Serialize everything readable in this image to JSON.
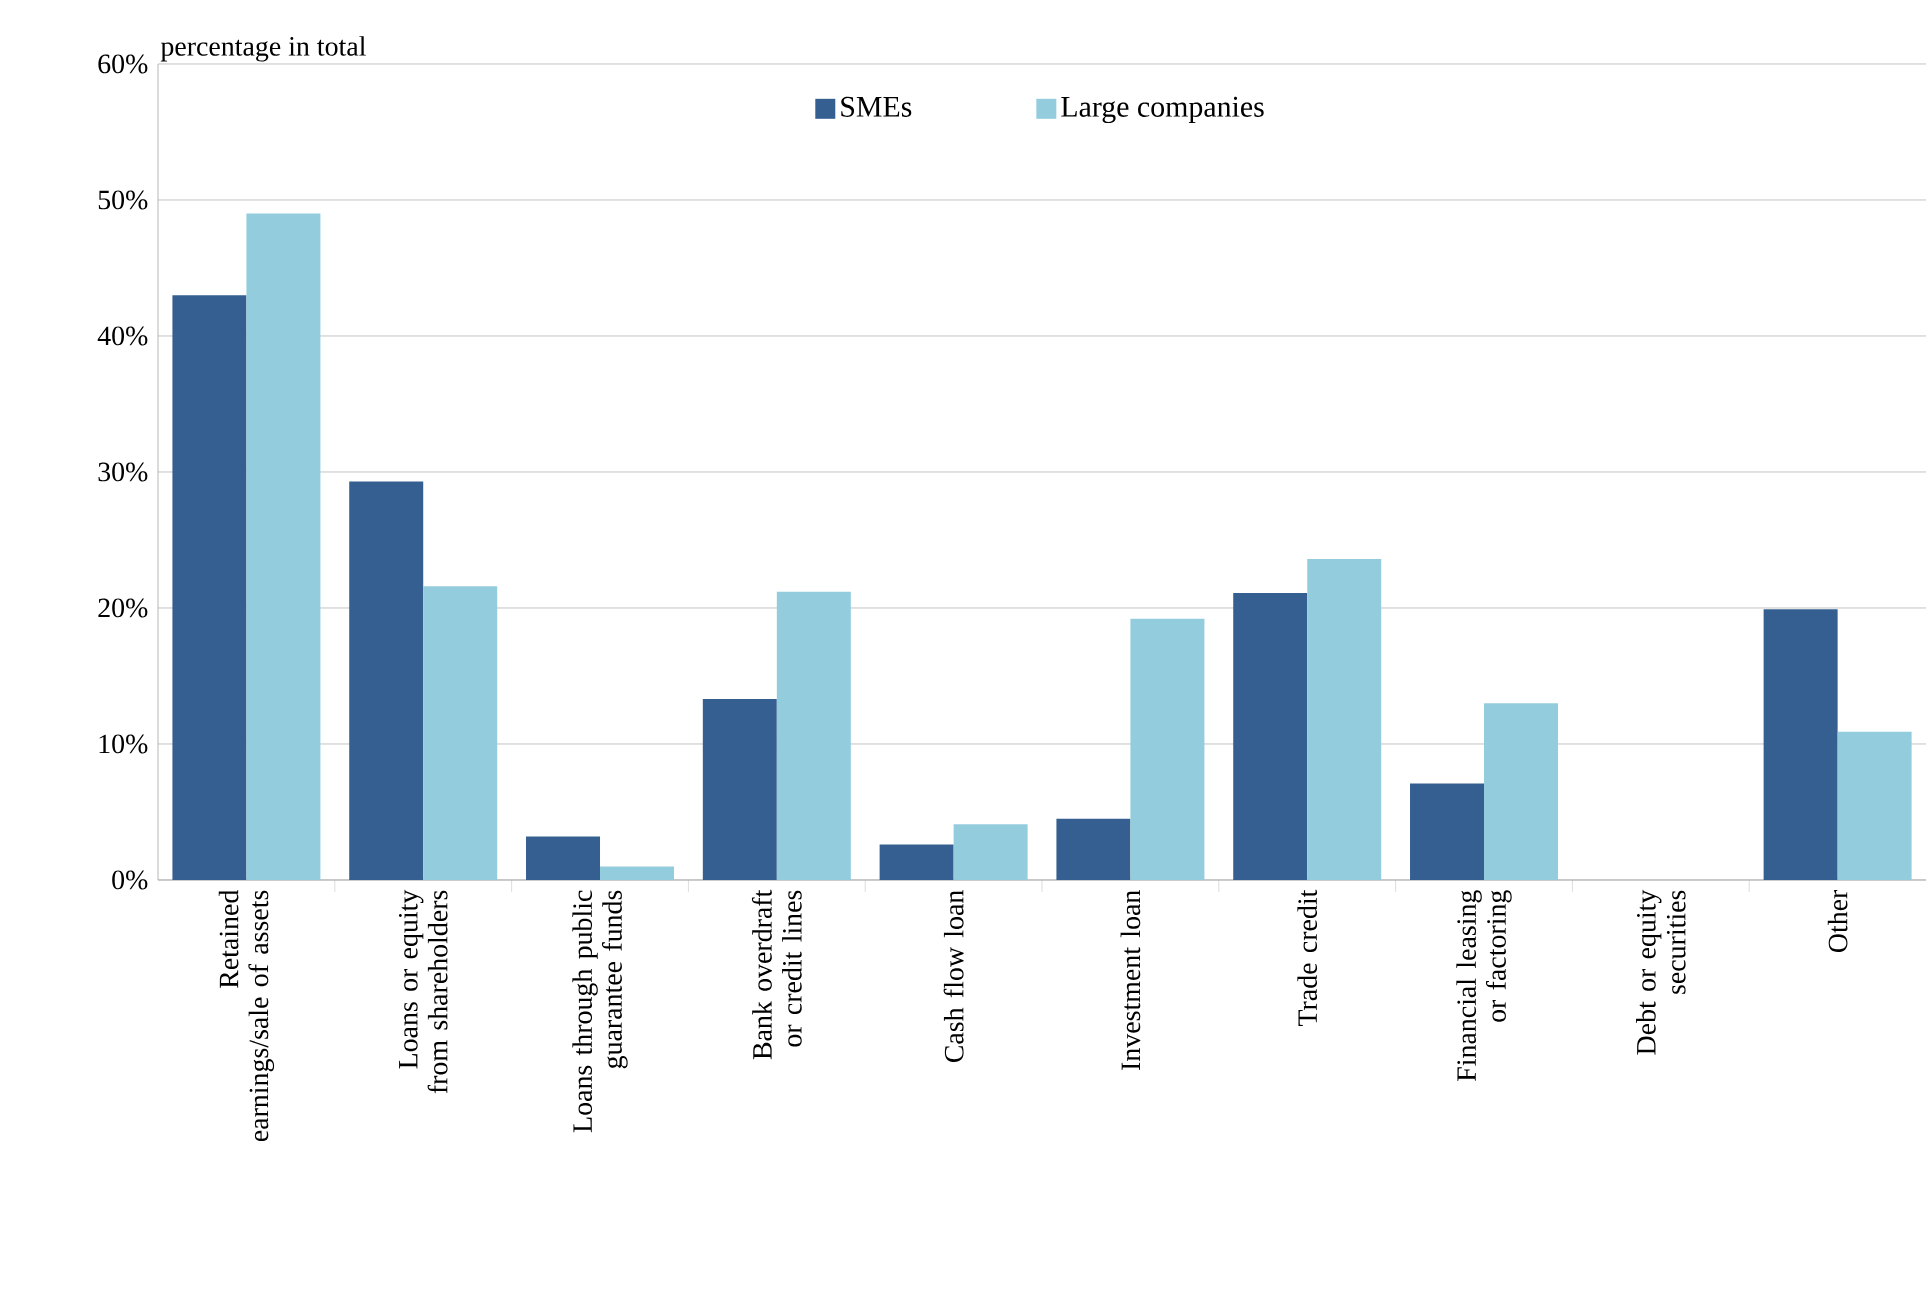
{
  "chart_data": {
    "type": "bar",
    "ylabel": "percentage in total",
    "categories": [
      "Retained earnings/sale of assets",
      "Loans or equity from shareholders",
      "Loans through public guarantee funds",
      "Bank overdraft or credit lines",
      "Cash flow loan",
      "Investment loan",
      "Trade credit",
      "Financial leasing or factoring",
      "Debt or equity securities",
      "Other"
    ],
    "series": [
      {
        "name": "SMEs",
        "color": "#365f91",
        "values": [
          43,
          29.3,
          3.2,
          13.3,
          2.6,
          4.5,
          21.1,
          7.1,
          0,
          19.9
        ]
      },
      {
        "name": "Large companies",
        "color": "#93cddd",
        "values": [
          49,
          21.6,
          1,
          21.2,
          4.1,
          19.2,
          23.6,
          13,
          0,
          10.9
        ]
      }
    ],
    "ylim": [
      0,
      60
    ],
    "yticks": [
      {
        "value": 0,
        "label": "0%"
      },
      {
        "value": 10,
        "label": "10%"
      },
      {
        "value": 20,
        "label": "20%"
      },
      {
        "value": 30,
        "label": "30%"
      },
      {
        "value": 40,
        "label": "40%"
      },
      {
        "value": 50,
        "label": "50%"
      },
      {
        "value": 60,
        "label": "60%"
      }
    ],
    "grid": "y",
    "legend": "top"
  }
}
